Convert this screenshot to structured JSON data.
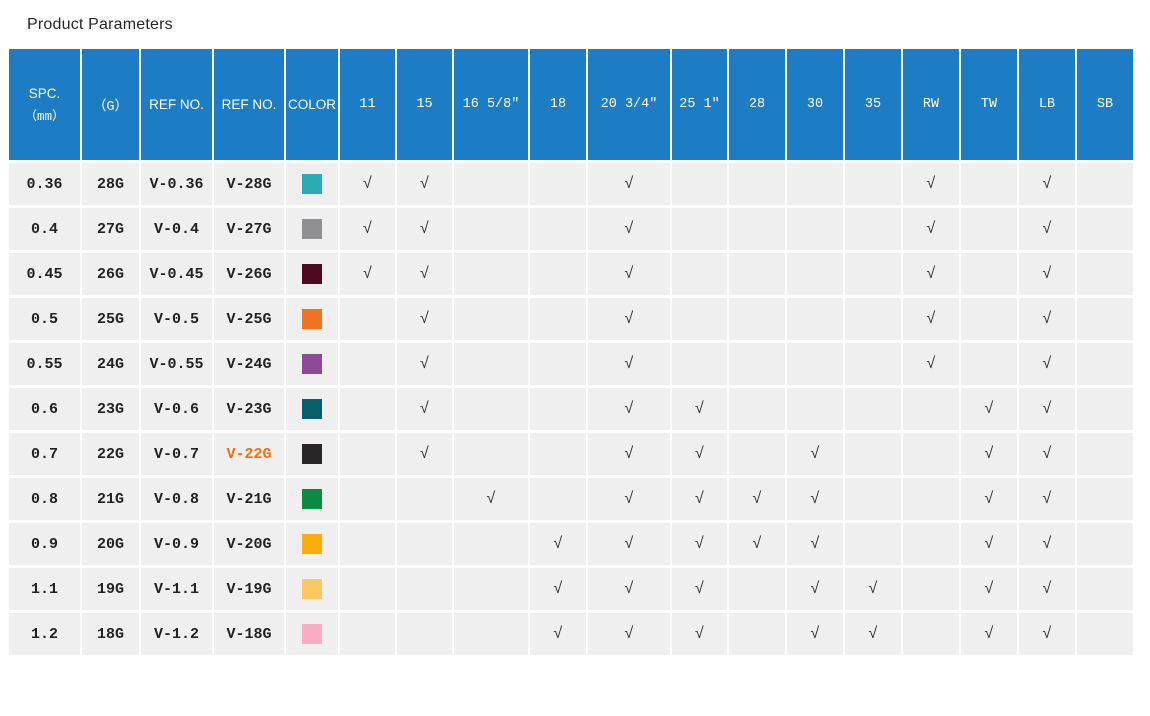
{
  "page": {
    "title": "Product Parameters"
  },
  "colors": {
    "header_bg": "#1d7dc4",
    "header_text": "#ffffff",
    "row_bg": "#f0efef",
    "text": "#222222",
    "check": "#333333",
    "highlight_ref": "#f86e00",
    "title_text": "#262626"
  },
  "table": {
    "check_mark": "√",
    "columns": [
      {
        "key": "spc",
        "label": "SPC.",
        "sublabel": "（mm）",
        "mono": false
      },
      {
        "key": "gauge",
        "label": "（G）",
        "mono": true
      },
      {
        "key": "ref_mm",
        "label": "REF NO.",
        "mono": false
      },
      {
        "key": "ref_g",
        "label": "REF NO.",
        "mono": false
      },
      {
        "key": "color",
        "label": "COLOR",
        "mono": false
      },
      {
        "key": "s11",
        "label": "11",
        "mono": true
      },
      {
        "key": "s15",
        "label": "15",
        "mono": true
      },
      {
        "key": "s16",
        "label": "16 5/8″",
        "mono": true
      },
      {
        "key": "s18",
        "label": "18",
        "mono": true
      },
      {
        "key": "s20",
        "label": "20 3/4″",
        "mono": true
      },
      {
        "key": "s25",
        "label": "25 1″",
        "mono": true
      },
      {
        "key": "s28",
        "label": "28",
        "mono": true
      },
      {
        "key": "s30",
        "label": "30",
        "mono": true
      },
      {
        "key": "s35",
        "label": "35",
        "mono": true
      },
      {
        "key": "rw",
        "label": "RW",
        "mono": true
      },
      {
        "key": "tw",
        "label": "TW",
        "mono": true
      },
      {
        "key": "lb",
        "label": "LB",
        "mono": true
      },
      {
        "key": "sb",
        "label": "SB",
        "mono": true
      }
    ],
    "rows": [
      {
        "spc": "0.36",
        "gauge": "28G",
        "ref_mm": "V-0.36",
        "ref_g": "V-28G",
        "ref_g_highlight": false,
        "swatch": "#2aacb2",
        "checks": [
          "s11",
          "s15",
          "s20",
          "rw",
          "lb"
        ]
      },
      {
        "spc": "0.4",
        "gauge": "27G",
        "ref_mm": "V-0.4",
        "ref_g": "V-27G",
        "ref_g_highlight": false,
        "swatch": "#909094",
        "checks": [
          "s11",
          "s15",
          "s20",
          "rw",
          "lb"
        ]
      },
      {
        "spc": "0.45",
        "gauge": "26G",
        "ref_mm": "V-0.45",
        "ref_g": "V-26G",
        "ref_g_highlight": false,
        "swatch": "#4d0a20",
        "checks": [
          "s11",
          "s15",
          "s20",
          "rw",
          "lb"
        ]
      },
      {
        "spc": "0.5",
        "gauge": "25G",
        "ref_mm": "V-0.5",
        "ref_g": "V-25G",
        "ref_g_highlight": false,
        "swatch": "#f07222",
        "checks": [
          "s15",
          "s20",
          "rw",
          "lb"
        ]
      },
      {
        "spc": "0.55",
        "gauge": "24G",
        "ref_mm": "V-0.55",
        "ref_g": "V-24G",
        "ref_g_highlight": false,
        "swatch": "#8d4a97",
        "checks": [
          "s15",
          "s20",
          "rw",
          "lb"
        ]
      },
      {
        "spc": "0.6",
        "gauge": "23G",
        "ref_mm": "V-0.6",
        "ref_g": "V-23G",
        "ref_g_highlight": false,
        "swatch": "#095e6b",
        "checks": [
          "s15",
          "s20",
          "s25",
          "tw",
          "lb"
        ]
      },
      {
        "spc": "0.7",
        "gauge": "22G",
        "ref_mm": "V-0.7",
        "ref_g": "V-22G",
        "ref_g_highlight": true,
        "swatch": "#2a2527",
        "checks": [
          "s15",
          "s20",
          "s25",
          "s30",
          "tw",
          "lb"
        ]
      },
      {
        "spc": "0.8",
        "gauge": "21G",
        "ref_mm": "V-0.8",
        "ref_g": "V-21G",
        "ref_g_highlight": false,
        "swatch": "#0b8a42",
        "checks": [
          "s16",
          "s20",
          "s25",
          "s28",
          "s30",
          "tw",
          "lb"
        ]
      },
      {
        "spc": "0.9",
        "gauge": "20G",
        "ref_mm": "V-0.9",
        "ref_g": "V-20G",
        "ref_g_highlight": false,
        "swatch": "#fbad0b",
        "checks": [
          "s18",
          "s20",
          "s25",
          "s28",
          "s30",
          "tw",
          "lb"
        ]
      },
      {
        "spc": "1.1",
        "gauge": "19G",
        "ref_mm": "V-1.1",
        "ref_g": "V-19G",
        "ref_g_highlight": false,
        "swatch": "#fdc763",
        "checks": [
          "s18",
          "s20",
          "s25",
          "s30",
          "s35",
          "tw",
          "lb"
        ]
      },
      {
        "spc": "1.2",
        "gauge": "18G",
        "ref_mm": "V-1.2",
        "ref_g": "V-18G",
        "ref_g_highlight": false,
        "swatch": "#f8adc2",
        "checks": [
          "s18",
          "s20",
          "s25",
          "s30",
          "s35",
          "tw",
          "lb"
        ]
      }
    ]
  }
}
